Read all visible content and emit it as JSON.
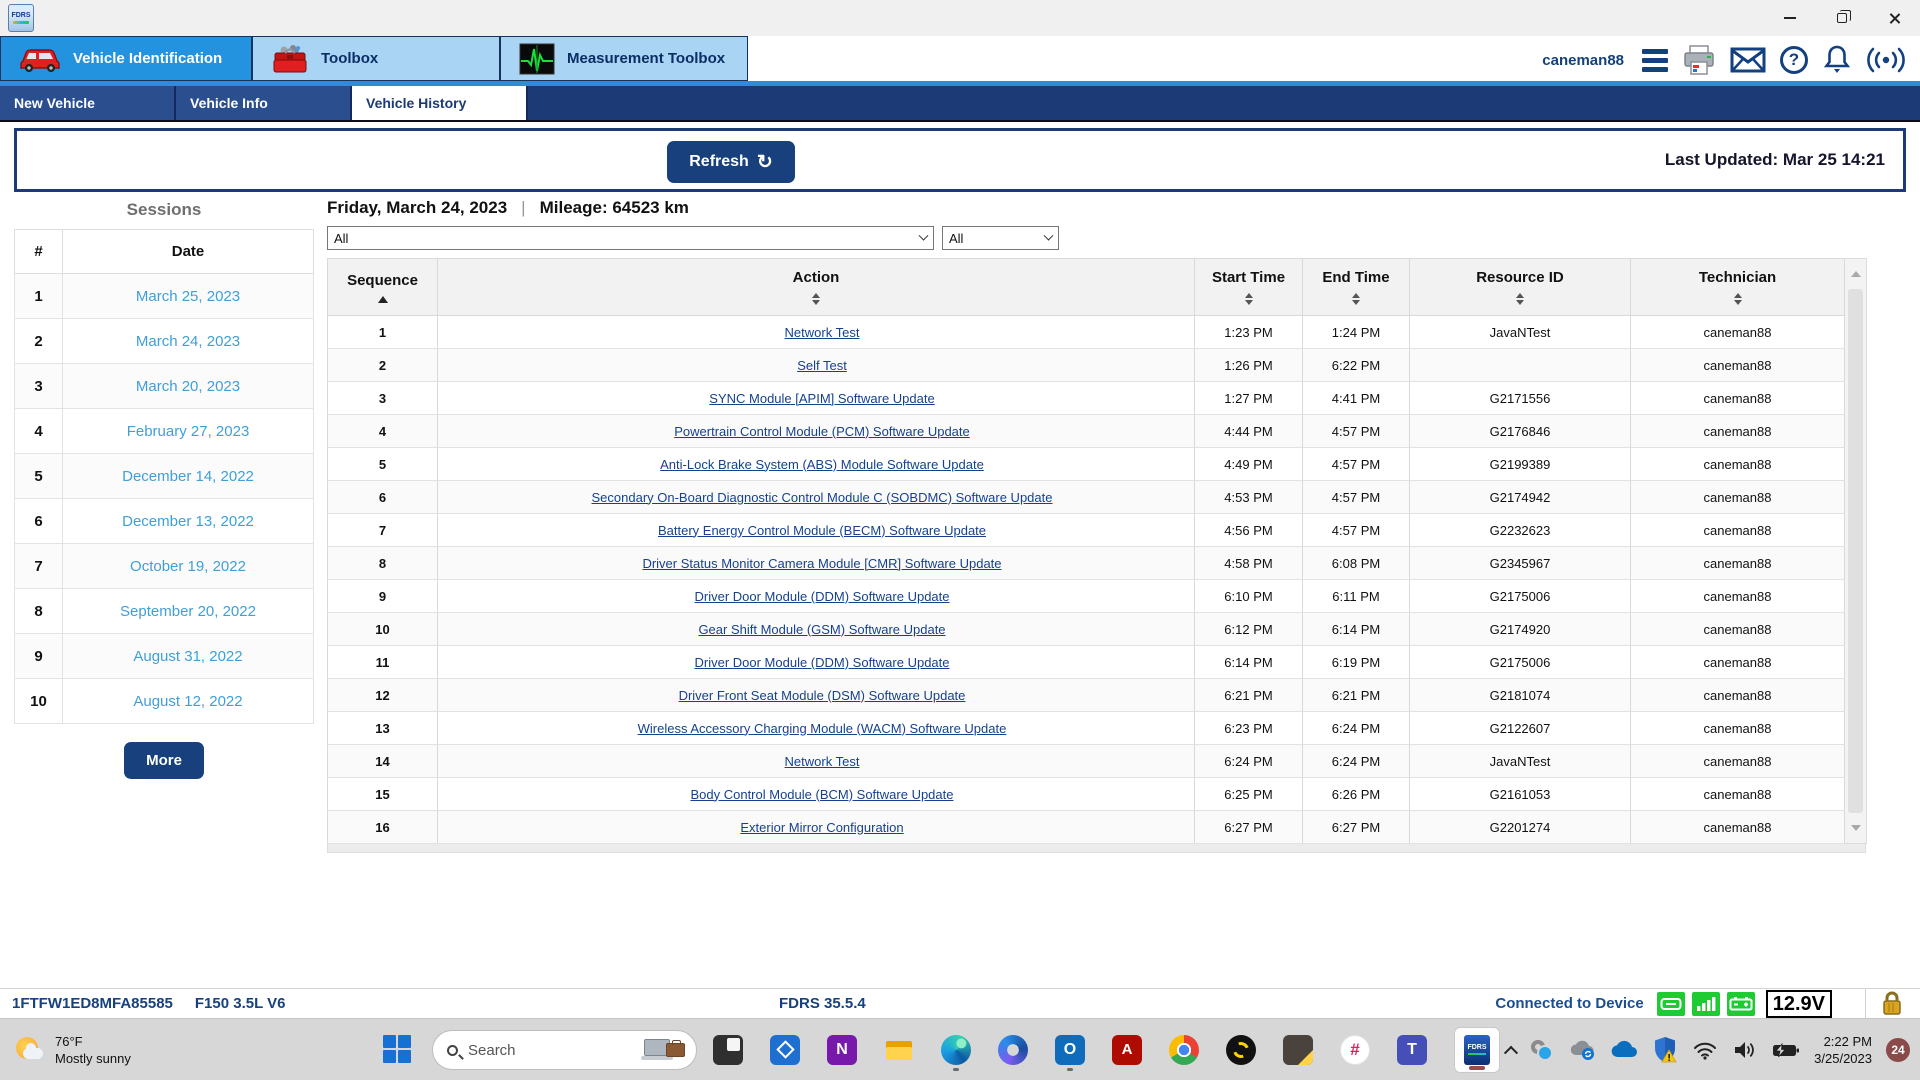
{
  "window": {
    "app_icon_label": "FDRS"
  },
  "header": {
    "user": "caneman88",
    "tabs": [
      {
        "label": "Vehicle Identification",
        "active": true
      },
      {
        "label": "Toolbox",
        "active": false
      },
      {
        "label": "Measurement Toolbox",
        "active": false
      }
    ]
  },
  "subtabs": [
    {
      "label": "New Vehicle",
      "active": false
    },
    {
      "label": "Vehicle Info",
      "active": false
    },
    {
      "label": "Vehicle History",
      "active": true
    }
  ],
  "toolbar": {
    "refresh_label": "Refresh",
    "last_updated": "Last Updated: Mar 25 14:21"
  },
  "sessions": {
    "title": "Sessions",
    "col_num": "#",
    "col_date": "Date",
    "more_label": "More",
    "rows": [
      {
        "num": "1",
        "date": "March 25, 2023"
      },
      {
        "num": "2",
        "date": "March 24, 2023"
      },
      {
        "num": "3",
        "date": "March 20, 2023"
      },
      {
        "num": "4",
        "date": "February 27, 2023"
      },
      {
        "num": "5",
        "date": "December 14, 2022"
      },
      {
        "num": "6",
        "date": "December 13, 2022"
      },
      {
        "num": "7",
        "date": "October 19, 2022"
      },
      {
        "num": "8",
        "date": "September 20, 2022"
      },
      {
        "num": "9",
        "date": "August 31, 2022"
      },
      {
        "num": "10",
        "date": "August 12, 2022"
      }
    ]
  },
  "history": {
    "heading_date": "Friday, March 24, 2023",
    "heading_sep": "|",
    "heading_mileage": "Mileage: 64523 km",
    "filter_action": "All",
    "filter_secondary": "All",
    "columns": [
      "Sequence",
      "Action",
      "Start Time",
      "End Time",
      "Resource ID",
      "Technician"
    ],
    "rows": [
      [
        "1",
        "Network Test",
        "1:23 PM",
        "1:24 PM",
        "JavaNTest",
        "caneman88"
      ],
      [
        "2",
        "Self Test",
        "1:26 PM",
        "6:22 PM",
        "",
        "caneman88"
      ],
      [
        "3",
        "SYNC Module [APIM] Software Update",
        "1:27 PM",
        "4:41 PM",
        "G2171556",
        "caneman88"
      ],
      [
        "4",
        "Powertrain Control Module (PCM) Software Update",
        "4:44 PM",
        "4:57 PM",
        "G2176846",
        "caneman88"
      ],
      [
        "5",
        "Anti-Lock Brake System (ABS) Module Software Update",
        "4:49 PM",
        "4:57 PM",
        "G2199389",
        "caneman88"
      ],
      [
        "6",
        "Secondary On-Board Diagnostic Control Module C (SOBDMC) Software Update",
        "4:53 PM",
        "4:57 PM",
        "G2174942",
        "caneman88"
      ],
      [
        "7",
        "Battery Energy Control Module (BECM) Software Update",
        "4:56 PM",
        "4:57 PM",
        "G2232623",
        "caneman88"
      ],
      [
        "8",
        "Driver Status Monitor Camera Module [CMR] Software Update",
        "4:58 PM",
        "6:08 PM",
        "G2345967",
        "caneman88"
      ],
      [
        "9",
        "Driver Door Module (DDM) Software Update",
        "6:10 PM",
        "6:11 PM",
        "G2175006",
        "caneman88"
      ],
      [
        "10",
        "Gear Shift Module (GSM) Software Update",
        "6:12 PM",
        "6:14 PM",
        "G2174920",
        "caneman88"
      ],
      [
        "11",
        "Driver Door Module (DDM) Software Update",
        "6:14 PM",
        "6:19 PM",
        "G2175006",
        "caneman88"
      ],
      [
        "12",
        "Driver Front Seat Module (DSM) Software Update",
        "6:21 PM",
        "6:21 PM",
        "G2181074",
        "caneman88"
      ],
      [
        "13",
        "Wireless Accessory Charging Module (WACM) Software Update",
        "6:23 PM",
        "6:24 PM",
        "G2122607",
        "caneman88"
      ],
      [
        "14",
        "Network Test",
        "6:24 PM",
        "6:24 PM",
        "JavaNTest",
        "caneman88"
      ],
      [
        "15",
        "Body Control Module (BCM) Software Update",
        "6:25 PM",
        "6:26 PM",
        "G2161053",
        "caneman88"
      ],
      [
        "16",
        "Exterior Mirror Configuration",
        "6:27 PM",
        "6:27 PM",
        "G2201274",
        "caneman88"
      ]
    ]
  },
  "statusbar": {
    "vin": "1FTFW1ED8MFA85585",
    "vehicle": "F150 3.5L V6",
    "version": "FDRS 35.5.4",
    "connection": "Connected to Device",
    "voltage": "12.9V"
  },
  "taskbar": {
    "weather_temp": "76°F",
    "weather_desc": "Mostly sunny",
    "search_placeholder": "Search",
    "time": "2:22 PM",
    "date": "3/25/2023",
    "badge": "24"
  },
  "colors": {
    "accent_navy": "#1c3a76",
    "button_navy": "#17407c",
    "active_tab_blue": "#2493df",
    "inactive_tab_blue": "#a9d4f3",
    "action_link_blue": "#16418c",
    "session_link_blue": "#3f9fd8",
    "status_green": "#1ecb33"
  }
}
